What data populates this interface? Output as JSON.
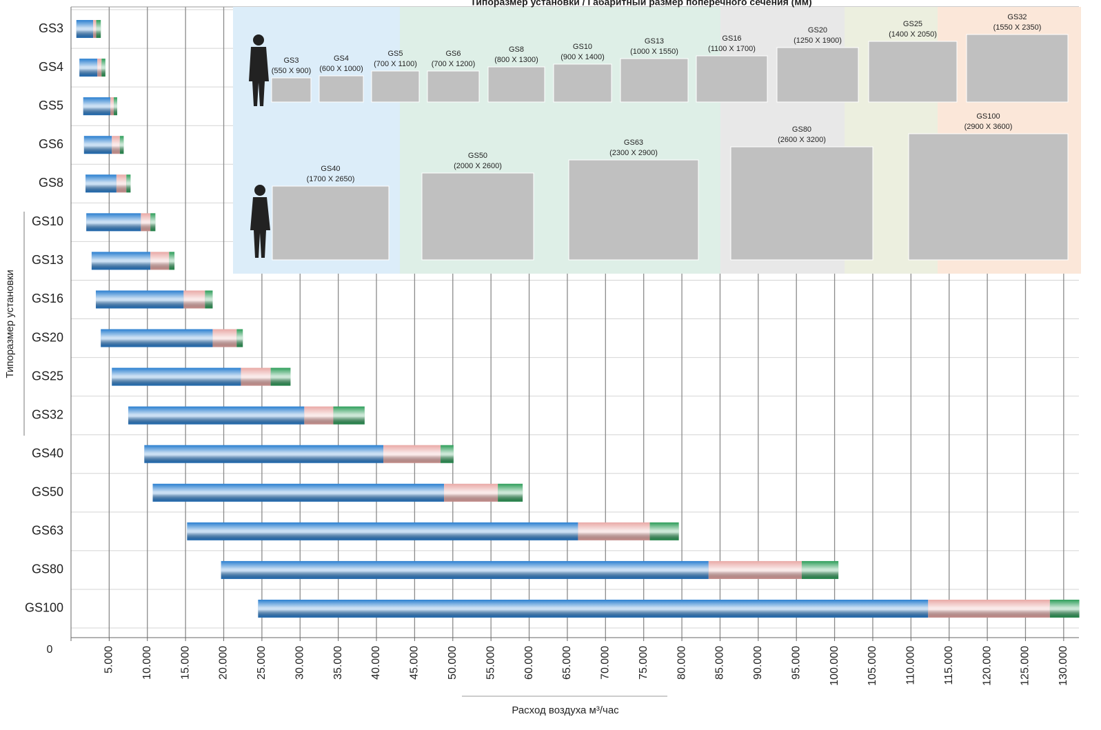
{
  "chart_data": {
    "type": "bar",
    "title": "Типоразмер установки / Габаритный размер поперечного сечения (мм)",
    "xlabel": "Расход воздуха м³/час",
    "ylabel": "Типоразмер установки",
    "categories": [
      "GS3",
      "GS4",
      "GS5",
      "GS6",
      "GS8",
      "GS10",
      "GS13",
      "GS16",
      "GS20",
      "GS25",
      "GS32",
      "GS40",
      "GS50",
      "GS63",
      "GS80",
      "GS100"
    ],
    "starts": [
      700,
      1100,
      1600,
      1700,
      1900,
      2000,
      2700,
      3250,
      3900,
      5350,
      7500,
      9600,
      10700,
      15200,
      19650,
      24500
    ],
    "series": [
      {
        "color": "#2a7fd0",
        "values": [
          2200,
          2350,
          3550,
          3650,
          4050,
          7150,
          7700,
          11500,
          14650,
          16900,
          23050,
          31300,
          38150,
          51200,
          63850,
          87750
        ]
      },
      {
        "color": "#e9a9a6",
        "values": [
          400,
          550,
          450,
          1050,
          1300,
          1250,
          2450,
          2800,
          3150,
          3900,
          3800,
          7500,
          7050,
          9400,
          12200,
          15950
        ]
      },
      {
        "color": "#2e9e5a",
        "values": [
          600,
          500,
          450,
          500,
          550,
          650,
          700,
          1000,
          800,
          2600,
          4100,
          1700,
          3250,
          3800,
          4800,
          3850
        ]
      }
    ],
    "xlim": [
      0,
      132000
    ],
    "xticks": [
      0,
      {
        "value": 5000,
        "label": "5.000"
      },
      {
        "value": 10000,
        "label": "10.000"
      },
      {
        "value": 15000,
        "label": "15.000"
      },
      {
        "value": 20000,
        "label": "20.000"
      },
      {
        "value": 25000,
        "label": "25.000"
      },
      {
        "value": 30000,
        "label": "30.000"
      },
      {
        "value": 35000,
        "label": "35.000"
      },
      {
        "value": 40000,
        "label": "40.000"
      },
      {
        "value": 45000,
        "label": "45.000"
      },
      {
        "value": 50000,
        "label": "50.000"
      },
      {
        "value": 55000,
        "label": "55.000"
      },
      {
        "value": 60000,
        "label": "60.000"
      },
      {
        "value": 65000,
        "label": "65.000"
      },
      {
        "value": 70000,
        "label": "70.000"
      },
      {
        "value": 75000,
        "label": "75.000"
      },
      {
        "value": 80000,
        "label": "80.000"
      },
      {
        "value": 85000,
        "label": "85.000"
      },
      {
        "value": 90000,
        "label": "90.000"
      },
      {
        "value": 95000,
        "label": "95.000"
      },
      {
        "value": 100000,
        "label": "100.000"
      },
      {
        "value": 105000,
        "label": "105.000"
      },
      {
        "value": 110000,
        "label": "110.000"
      },
      {
        "value": 115000,
        "label": "115.000"
      },
      {
        "value": 120000,
        "label": "120.000"
      },
      {
        "value": 125000,
        "label": "125.000"
      },
      {
        "value": 130000,
        "label": "130.000"
      }
    ],
    "grid": true
  },
  "inset": {
    "row1": [
      {
        "name": "GS3",
        "size": "(550 X 900)"
      },
      {
        "name": "GS4",
        "size": "(600 X 1000)"
      },
      {
        "name": "GS5",
        "size": "(700 X 1100)"
      },
      {
        "name": "GS6",
        "size": "(700 X 1200)"
      },
      {
        "name": "GS8",
        "size": "(800 X 1300)"
      },
      {
        "name": "GS10",
        "size": "(900 X 1400)"
      },
      {
        "name": "GS13",
        "size": "(1000 X 1550)"
      },
      {
        "name": "GS16",
        "size": "(1100 X 1700)"
      },
      {
        "name": "GS20",
        "size": "(1250 X 1900)"
      },
      {
        "name": "GS25",
        "size": "(1400 X 2050)"
      },
      {
        "name": "GS32",
        "size": "(1550 X 2350)"
      }
    ],
    "row2": [
      {
        "name": "GS40",
        "size": "(1700 X 2650)"
      },
      {
        "name": "GS50",
        "size": "(2000 X 2600)"
      },
      {
        "name": "GS63",
        "size": "(2300 X 2900)"
      },
      {
        "name": "GS80",
        "size": "(2600 X 3200)"
      },
      {
        "name": "GS100",
        "size": "(2900 X 3600)"
      }
    ]
  }
}
